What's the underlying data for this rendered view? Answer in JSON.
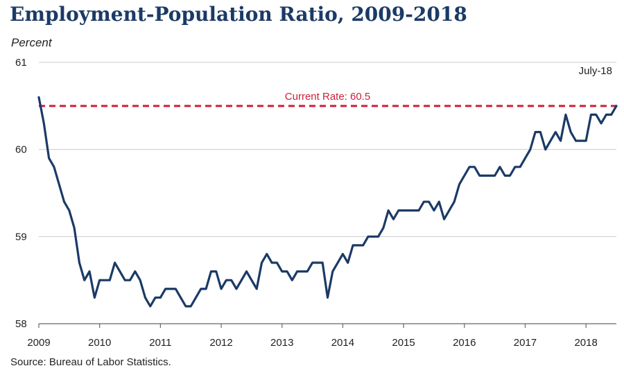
{
  "title": "Employment-Population Ratio, 2009-2018",
  "y_unit_label": "Percent",
  "source": "Source: Bureau of Labor Statistics.",
  "colors": {
    "series": "#1b3a66",
    "reference_line": "#cc1f3b",
    "grid": "#cccccc",
    "axis": "#666666"
  },
  "chart_data": {
    "type": "line",
    "title": "Employment-Population Ratio, 2009-2018",
    "ylabel": "Percent",
    "xlabel": "",
    "ylim": [
      58,
      61
    ],
    "yticks": [
      58,
      59,
      60,
      61
    ],
    "xticks": [
      "2009",
      "2010",
      "2011",
      "2012",
      "2013",
      "2014",
      "2015",
      "2016",
      "2017",
      "2018"
    ],
    "xlim": [
      "2009-01",
      "2018-07"
    ],
    "grid": "horizontal",
    "series": [
      {
        "start": "2009-01",
        "frequency": "monthly",
        "values": [
          60.6,
          60.3,
          59.9,
          59.8,
          59.6,
          59.4,
          59.3,
          59.1,
          58.7,
          58.5,
          58.6,
          58.3,
          58.5,
          58.5,
          58.5,
          58.7,
          58.6,
          58.5,
          58.5,
          58.6,
          58.5,
          58.3,
          58.2,
          58.3,
          58.3,
          58.4,
          58.4,
          58.4,
          58.3,
          58.2,
          58.2,
          58.3,
          58.4,
          58.4,
          58.6,
          58.6,
          58.4,
          58.5,
          58.5,
          58.4,
          58.5,
          58.6,
          58.5,
          58.4,
          58.7,
          58.8,
          58.7,
          58.7,
          58.6,
          58.6,
          58.5,
          58.6,
          58.6,
          58.6,
          58.7,
          58.7,
          58.7,
          58.3,
          58.6,
          58.7,
          58.8,
          58.7,
          58.9,
          58.9,
          58.9,
          59.0,
          59.0,
          59.0,
          59.1,
          59.3,
          59.2,
          59.3,
          59.3,
          59.3,
          59.3,
          59.3,
          59.4,
          59.4,
          59.3,
          59.4,
          59.2,
          59.3,
          59.4,
          59.6,
          59.7,
          59.8,
          59.8,
          59.7,
          59.7,
          59.7,
          59.7,
          59.8,
          59.7,
          59.7,
          59.8,
          59.8,
          59.9,
          60.0,
          60.2,
          60.2,
          60.0,
          60.1,
          60.2,
          60.1,
          60.4,
          60.2,
          60.1,
          60.1,
          60.1,
          60.4,
          60.4,
          60.3,
          60.4,
          60.4,
          60.5
        ]
      }
    ],
    "reference_line": {
      "value": 60.5,
      "label": "Current Rate: 60.5",
      "style": "dashed"
    },
    "annotations": [
      {
        "text": "July-18",
        "placement": "top-right"
      }
    ]
  }
}
